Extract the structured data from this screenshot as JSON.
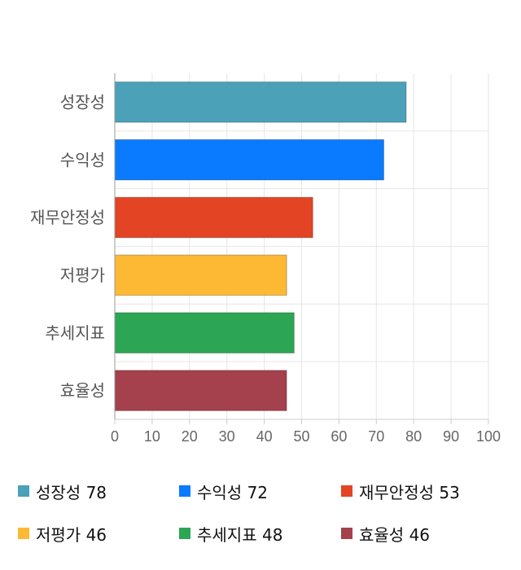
{
  "chart_data": {
    "type": "bar",
    "orientation": "horizontal",
    "categories": [
      "성장성",
      "수익성",
      "재무안정성",
      "저평가",
      "추세지표",
      "효율성"
    ],
    "values": [
      78,
      72,
      53,
      46,
      48,
      46
    ],
    "colors": [
      "#4aa1b8",
      "#0a7bff",
      "#e34424",
      "#fdb934",
      "#2ca654",
      "#a5404d"
    ],
    "xlim": [
      0,
      100
    ],
    "xticks": [
      "0",
      "10",
      "20",
      "30",
      "40",
      "50",
      "60",
      "70",
      "80",
      "90",
      "100"
    ],
    "grid": true,
    "legend_position": "bottom",
    "legend": [
      {
        "label": "성장성",
        "value": "78",
        "color": "#4aa1b8"
      },
      {
        "label": "수익성",
        "value": "72",
        "color": "#0a7bff"
      },
      {
        "label": "재무안정성",
        "value": "53",
        "color": "#e34424"
      },
      {
        "label": "저평가",
        "value": "46",
        "color": "#fdb934"
      },
      {
        "label": "추세지표",
        "value": "48",
        "color": "#2ca654"
      },
      {
        "label": "효율성",
        "value": "46",
        "color": "#a5404d"
      }
    ]
  }
}
